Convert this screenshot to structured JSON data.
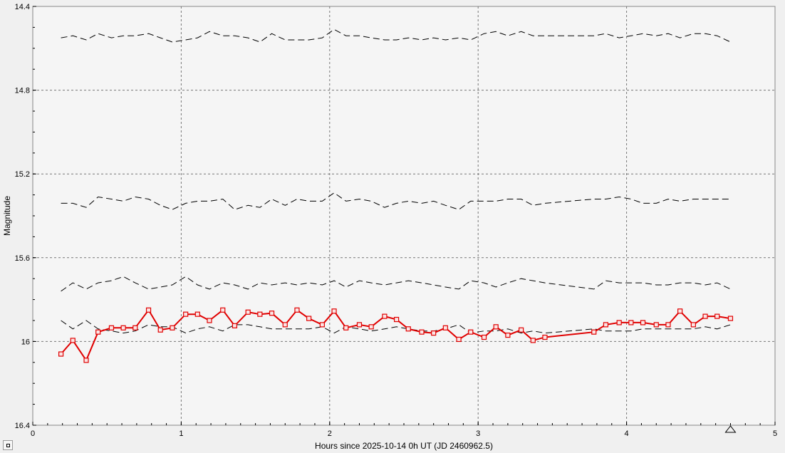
{
  "chart_data": {
    "type": "line",
    "title": "",
    "xlabel": "Hours since 2025-10-14 0h UT (JD 2460962.5)",
    "ylabel": "Magnitude",
    "xlim": [
      0,
      5
    ],
    "ylim": [
      14.4,
      16.4
    ],
    "y_inverted": true,
    "grid": true,
    "x_ticks": [
      0,
      1,
      2,
      3,
      4,
      5
    ],
    "x_tick_labels": [
      "0",
      "1",
      "2",
      "3",
      "4",
      "5"
    ],
    "y_ticks": [
      14.4,
      14.8,
      15.2,
      15.6,
      16.0,
      16.4
    ],
    "y_tick_labels": [
      "14.4",
      "14.8",
      "15.2",
      "15.6",
      "16",
      "16.4"
    ],
    "marker": {
      "x": 4.7,
      "shape": "triangle-outline"
    },
    "series": [
      {
        "role": "target",
        "color": "#e00000",
        "style": "solid-square-markers",
        "x": [
          0.19,
          0.27,
          0.36,
          0.44,
          0.53,
          0.61,
          0.69,
          0.78,
          0.86,
          0.94,
          1.03,
          1.11,
          1.19,
          1.28,
          1.36,
          1.45,
          1.53,
          1.61,
          1.7,
          1.78,
          1.86,
          1.95,
          2.03,
          2.11,
          2.2,
          2.28,
          2.37,
          2.45,
          2.53,
          2.62,
          2.7,
          2.78,
          2.87,
          2.95,
          3.04,
          3.12,
          3.2,
          3.29,
          3.37,
          3.45,
          3.78,
          3.86,
          3.95,
          4.03,
          4.11,
          4.2,
          4.28,
          4.36,
          4.45,
          4.53,
          4.61,
          4.7
        ],
        "y": [
          16.06,
          15.995,
          16.09,
          15.955,
          15.935,
          15.935,
          15.935,
          15.85,
          15.945,
          15.935,
          15.87,
          15.87,
          15.9,
          15.85,
          15.925,
          15.86,
          15.87,
          15.865,
          15.92,
          15.85,
          15.89,
          15.92,
          15.855,
          15.935,
          15.92,
          15.93,
          15.88,
          15.895,
          15.94,
          15.955,
          15.96,
          15.935,
          15.99,
          15.955,
          15.98,
          15.93,
          15.97,
          15.945,
          15.995,
          15.98,
          15.955,
          15.92,
          15.91,
          15.91,
          15.91,
          15.92,
          15.92,
          15.855,
          15.92,
          15.88,
          15.88,
          15.89
        ]
      },
      {
        "role": "comparison",
        "color": "#000000",
        "style": "dashed",
        "x": [
          0.19,
          0.27,
          0.36,
          0.44,
          0.53,
          0.61,
          0.69,
          0.78,
          0.86,
          0.94,
          1.03,
          1.11,
          1.19,
          1.28,
          1.36,
          1.45,
          1.53,
          1.61,
          1.7,
          1.78,
          1.86,
          1.95,
          2.03,
          2.11,
          2.2,
          2.28,
          2.37,
          2.45,
          2.53,
          2.62,
          2.7,
          2.78,
          2.87,
          2.95,
          3.04,
          3.12,
          3.2,
          3.29,
          3.37,
          3.45,
          3.78,
          3.86,
          3.95,
          4.03,
          4.11,
          4.2,
          4.28,
          4.36,
          4.45,
          4.53,
          4.61,
          4.7
        ],
        "y": [
          14.55,
          14.54,
          14.56,
          14.53,
          14.55,
          14.54,
          14.54,
          14.53,
          14.55,
          14.57,
          14.56,
          14.55,
          14.52,
          14.54,
          14.54,
          14.55,
          14.57,
          14.53,
          14.56,
          14.56,
          14.56,
          14.55,
          14.51,
          14.54,
          14.54,
          14.55,
          14.56,
          14.56,
          14.55,
          14.56,
          14.55,
          14.56,
          14.55,
          14.56,
          14.53,
          14.52,
          14.54,
          14.52,
          14.54,
          14.54,
          14.54,
          14.53,
          14.55,
          14.54,
          14.53,
          14.54,
          14.53,
          14.55,
          14.53,
          14.53,
          14.54,
          14.57
        ]
      },
      {
        "role": "comparison",
        "color": "#000000",
        "style": "dashed",
        "x": [
          0.19,
          0.27,
          0.36,
          0.44,
          0.53,
          0.61,
          0.69,
          0.78,
          0.86,
          0.94,
          1.03,
          1.11,
          1.19,
          1.28,
          1.36,
          1.45,
          1.53,
          1.61,
          1.7,
          1.78,
          1.86,
          1.95,
          2.03,
          2.11,
          2.2,
          2.28,
          2.37,
          2.45,
          2.53,
          2.62,
          2.7,
          2.78,
          2.87,
          2.95,
          3.04,
          3.12,
          3.2,
          3.29,
          3.37,
          3.45,
          3.78,
          3.86,
          3.95,
          4.03,
          4.11,
          4.2,
          4.28,
          4.36,
          4.45,
          4.53,
          4.61,
          4.7
        ],
        "y": [
          15.34,
          15.34,
          15.36,
          15.31,
          15.32,
          15.33,
          15.31,
          15.32,
          15.35,
          15.37,
          15.34,
          15.33,
          15.33,
          15.32,
          15.37,
          15.35,
          15.36,
          15.32,
          15.35,
          15.32,
          15.33,
          15.33,
          15.29,
          15.33,
          15.32,
          15.33,
          15.36,
          15.34,
          15.33,
          15.34,
          15.33,
          15.35,
          15.37,
          15.33,
          15.33,
          15.33,
          15.32,
          15.32,
          15.35,
          15.34,
          15.32,
          15.32,
          15.31,
          15.32,
          15.34,
          15.34,
          15.32,
          15.33,
          15.32,
          15.32,
          15.32,
          15.32
        ]
      },
      {
        "role": "comparison",
        "color": "#000000",
        "style": "dashed",
        "x": [
          0.19,
          0.27,
          0.36,
          0.44,
          0.53,
          0.61,
          0.69,
          0.78,
          0.86,
          0.94,
          1.03,
          1.11,
          1.19,
          1.28,
          1.36,
          1.45,
          1.53,
          1.61,
          1.7,
          1.78,
          1.86,
          1.95,
          2.03,
          2.11,
          2.2,
          2.28,
          2.37,
          2.45,
          2.53,
          2.62,
          2.7,
          2.78,
          2.87,
          2.95,
          3.04,
          3.12,
          3.2,
          3.29,
          3.37,
          3.45,
          3.78,
          3.86,
          3.95,
          4.03,
          4.11,
          4.2,
          4.28,
          4.36,
          4.45,
          4.53,
          4.61,
          4.7
        ],
        "y": [
          15.76,
          15.72,
          15.75,
          15.72,
          15.71,
          15.69,
          15.72,
          15.75,
          15.74,
          15.73,
          15.69,
          15.73,
          15.75,
          15.72,
          15.73,
          15.75,
          15.72,
          15.73,
          15.72,
          15.73,
          15.72,
          15.73,
          15.71,
          15.74,
          15.71,
          15.72,
          15.73,
          15.72,
          15.71,
          15.72,
          15.73,
          15.74,
          15.75,
          15.71,
          15.72,
          15.74,
          15.72,
          15.7,
          15.71,
          15.72,
          15.75,
          15.71,
          15.72,
          15.72,
          15.72,
          15.73,
          15.73,
          15.72,
          15.72,
          15.73,
          15.72,
          15.75
        ]
      },
      {
        "role": "comparison",
        "color": "#000000",
        "style": "dashed",
        "x": [
          0.19,
          0.27,
          0.36,
          0.44,
          0.53,
          0.61,
          0.69,
          0.78,
          0.86,
          0.94,
          1.03,
          1.11,
          1.19,
          1.28,
          1.36,
          1.45,
          1.53,
          1.61,
          1.7,
          1.78,
          1.86,
          1.95,
          2.03,
          2.11,
          2.2,
          2.28,
          2.37,
          2.45,
          2.53,
          2.62,
          2.7,
          2.78,
          2.87,
          2.95,
          3.04,
          3.12,
          3.2,
          3.29,
          3.37,
          3.45,
          3.78,
          3.86,
          3.95,
          4.03,
          4.11,
          4.2,
          4.28,
          4.36,
          4.45,
          4.53,
          4.61,
          4.7
        ],
        "y": [
          15.9,
          15.94,
          15.9,
          15.94,
          15.95,
          15.96,
          15.95,
          15.92,
          15.93,
          15.93,
          15.96,
          15.94,
          15.93,
          15.95,
          15.92,
          15.92,
          15.93,
          15.94,
          15.94,
          15.94,
          15.94,
          15.93,
          15.96,
          15.93,
          15.94,
          15.95,
          15.94,
          15.93,
          15.94,
          15.95,
          15.95,
          15.94,
          15.92,
          15.96,
          15.95,
          15.95,
          15.94,
          15.96,
          15.95,
          15.96,
          15.94,
          15.95,
          15.95,
          15.95,
          15.94,
          15.94,
          15.94,
          15.94,
          15.94,
          15.93,
          15.94,
          15.92
        ]
      }
    ]
  }
}
